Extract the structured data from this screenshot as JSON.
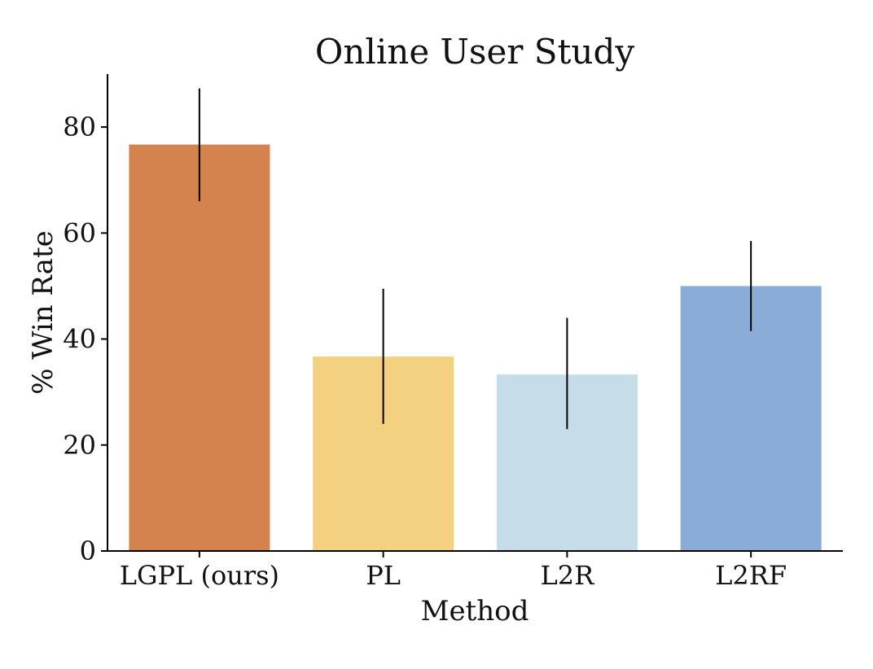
{
  "chart_data": {
    "type": "bar",
    "title": "Online User Study",
    "xlabel": "Method",
    "ylabel": "% Win Rate",
    "ylim": [
      0,
      90
    ],
    "yticks": [
      0,
      20,
      40,
      60,
      80
    ],
    "categories": [
      "LGPL (ours)",
      "PL",
      "L2R",
      "L2RF"
    ],
    "values": [
      76.7,
      36.7,
      33.3,
      50.0
    ],
    "error_low": [
      66.0,
      24.0,
      23.0,
      41.5
    ],
    "error_high": [
      87.3,
      49.5,
      44.0,
      58.5
    ],
    "colors": [
      "#D4834E",
      "#F4D081",
      "#C4DDE8",
      "#89ADD6"
    ],
    "grid": false,
    "legend": "none"
  }
}
